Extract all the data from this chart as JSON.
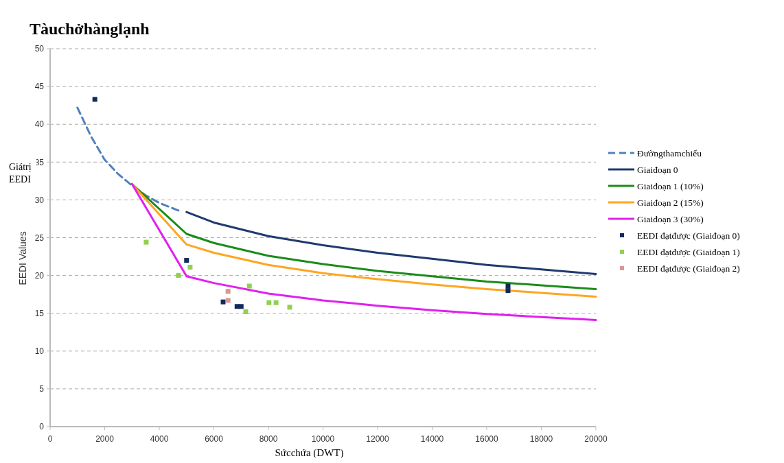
{
  "chart_data": {
    "type": "line",
    "title": "Tàuchởhànglạnh",
    "xlabel": "Sứcchứa (DWT)",
    "ylabel": "EEDI Values",
    "annotations": [
      "Giátrị EEDI"
    ],
    "xlim": [
      0,
      20000
    ],
    "xticks": [
      0,
      2000,
      4000,
      6000,
      8000,
      10000,
      12000,
      14000,
      16000,
      18000,
      20000
    ],
    "ylim": [
      0,
      50
    ],
    "yticks": [
      0,
      5,
      10,
      15,
      20,
      25,
      30,
      35,
      40,
      45,
      50
    ],
    "grid": "y",
    "legend": "right",
    "series": [
      {
        "name": "Đườngthamchiếu",
        "line_style": "dashed",
        "color": "#4f81bd",
        "x": [
          1000,
          1500,
          2000,
          2500,
          3000,
          3500,
          4000,
          4700
        ],
        "values": [
          42.2,
          38.4,
          35.3,
          33.4,
          31.9,
          30.6,
          29.6,
          28.6
        ]
      },
      {
        "name": "Giaiđoạn 0",
        "color": "#1f3a6e",
        "x": [
          5000,
          6000,
          8000,
          10000,
          12000,
          14000,
          16000,
          18000,
          20000
        ],
        "values": [
          28.4,
          27.0,
          25.2,
          24.0,
          23.0,
          22.2,
          21.4,
          20.8,
          20.2
        ]
      },
      {
        "name": "Giaiđoạn 1 (10%)",
        "color": "#1a8c1a",
        "x": [
          3000,
          5000,
          6000,
          8000,
          10000,
          12000,
          14000,
          16000,
          18000,
          20000
        ],
        "values": [
          32.1,
          25.5,
          24.3,
          22.6,
          21.5,
          20.6,
          19.9,
          19.2,
          18.7,
          18.2
        ]
      },
      {
        "name": "Giaiđoạn 2 (15%)",
        "color": "#ffa520",
        "x": [
          3000,
          5000,
          6000,
          8000,
          10000,
          12000,
          14000,
          16000,
          18000,
          20000
        ],
        "values": [
          32.1,
          24.1,
          23.0,
          21.4,
          20.3,
          19.5,
          18.8,
          18.2,
          17.7,
          17.2
        ]
      },
      {
        "name": "Giaiđoạn 3 (30%)",
        "color": "#e020f0",
        "x": [
          3000,
          5000,
          6000,
          8000,
          10000,
          12000,
          14000,
          16000,
          18000,
          20000
        ],
        "values": [
          32.1,
          19.9,
          19.0,
          17.6,
          16.7,
          16.0,
          15.4,
          14.9,
          14.5,
          14.1
        ]
      },
      {
        "name": "EEDI đạtđược (Giaiđoạn 0)",
        "type": "scatter",
        "marker": "square",
        "color": "#0f2a5e",
        "x": [
          1640,
          5000,
          6340,
          6850,
          7000,
          16780,
          16780
        ],
        "values": [
          43.3,
          22.0,
          16.5,
          15.9,
          15.9,
          18.0,
          18.6
        ]
      },
      {
        "name": "EEDI đạtđược (Giaiđoạn 1)",
        "type": "scatter",
        "marker": "square",
        "color": "#92d050",
        "x": [
          3520,
          4700,
          5130,
          7300,
          7170,
          8020,
          8280,
          8780
        ],
        "values": [
          24.4,
          20.0,
          21.1,
          18.6,
          15.2,
          16.4,
          16.4,
          15.8
        ]
      },
      {
        "name": "EEDI đạtđược (Giaiđoạn 2)",
        "type": "scatter",
        "marker": "square",
        "color": "#d99694",
        "x": [
          6520,
          6520
        ],
        "values": [
          17.9,
          16.7
        ]
      }
    ]
  }
}
